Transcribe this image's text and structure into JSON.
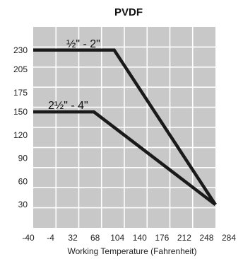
{
  "chart_data": {
    "type": "line",
    "title": "PVDF",
    "xlabel": "Working Temperature (Fahrenheit)",
    "ylabel": "",
    "x_ticks": [
      -40,
      -4,
      32,
      68,
      104,
      140,
      176,
      212,
      248,
      284
    ],
    "y_ticks": [
      30,
      60,
      90,
      120,
      150,
      175,
      205,
      230
    ],
    "xlim": [
      -40,
      284
    ],
    "ylim": [
      0,
      260
    ],
    "grid": true,
    "plot_background": "#c8c8c8",
    "grid_color": "#ffffff",
    "line_color": "#1a1a1a",
    "series": [
      {
        "name": "½\" - 2\"",
        "points": [
          [
            -40,
            230
          ],
          [
            104,
            230
          ],
          [
            284,
            30
          ]
        ]
      },
      {
        "name": "2½\" - 4\"",
        "points": [
          [
            -40,
            150
          ],
          [
            68,
            150
          ],
          [
            284,
            30
          ]
        ]
      }
    ]
  }
}
